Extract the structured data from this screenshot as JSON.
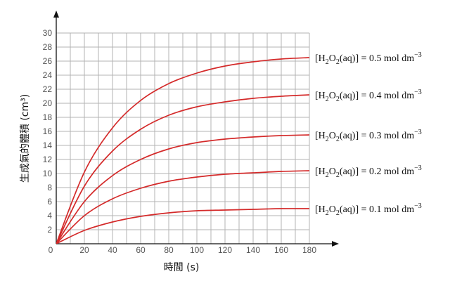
{
  "chart_data": {
    "type": "line",
    "xlabel": "時間 (s)",
    "ylabel": "生成氣的體積 (cm³)",
    "xlim": [
      0,
      180
    ],
    "ylim": [
      0,
      30
    ],
    "x_ticks": [
      0,
      20,
      40,
      60,
      80,
      100,
      120,
      140,
      160,
      180
    ],
    "y_ticks": [
      0,
      2,
      4,
      6,
      8,
      10,
      12,
      14,
      16,
      18,
      20,
      22,
      24,
      26,
      28,
      30
    ],
    "grid": true,
    "line_color": "#d42a2a",
    "x": [
      0,
      20,
      40,
      60,
      80,
      100,
      120,
      140,
      160,
      180
    ],
    "series": [
      {
        "label": {
          "open": "[H",
          "sub1": "2",
          "mid": "O",
          "sub2": "2",
          "close": "(aq)] = 0.5 mol dm",
          "sup": "−3"
        },
        "values": [
          0,
          10.2,
          16.5,
          20.4,
          22.8,
          24.3,
          25.3,
          25.9,
          26.3,
          26.5
        ]
      },
      {
        "label": {
          "open": "[H",
          "sub1": "2",
          "mid": "O",
          "sub2": "2",
          "close": "(aq)] = 0.4 mol dm",
          "sup": "−3"
        },
        "values": [
          0,
          8.2,
          13.2,
          16.3,
          18.3,
          19.5,
          20.2,
          20.7,
          21.0,
          21.2
        ]
      },
      {
        "label": {
          "open": "[H",
          "sub1": "2",
          "mid": "O",
          "sub2": "2",
          "close": "(aq)] = 0.3 mol dm",
          "sup": "−3"
        },
        "values": [
          0,
          6.0,
          9.7,
          12.0,
          13.5,
          14.4,
          14.9,
          15.2,
          15.4,
          15.5
        ]
      },
      {
        "label": {
          "open": "[H",
          "sub1": "2",
          "mid": "O",
          "sub2": "2",
          "close": "(aq)] = 0.2 mol dm",
          "sup": "−3"
        },
        "values": [
          0,
          4.0,
          6.4,
          7.9,
          8.9,
          9.5,
          9.9,
          10.1,
          10.3,
          10.4
        ]
      },
      {
        "label": {
          "open": "[H",
          "sub1": "2",
          "mid": "O",
          "sub2": "2",
          "close": "(aq)] = 0.1 mol dm",
          "sup": "−3"
        },
        "values": [
          0,
          1.9,
          3.1,
          3.9,
          4.4,
          4.7,
          4.8,
          4.9,
          5.0,
          5.0
        ]
      }
    ]
  }
}
